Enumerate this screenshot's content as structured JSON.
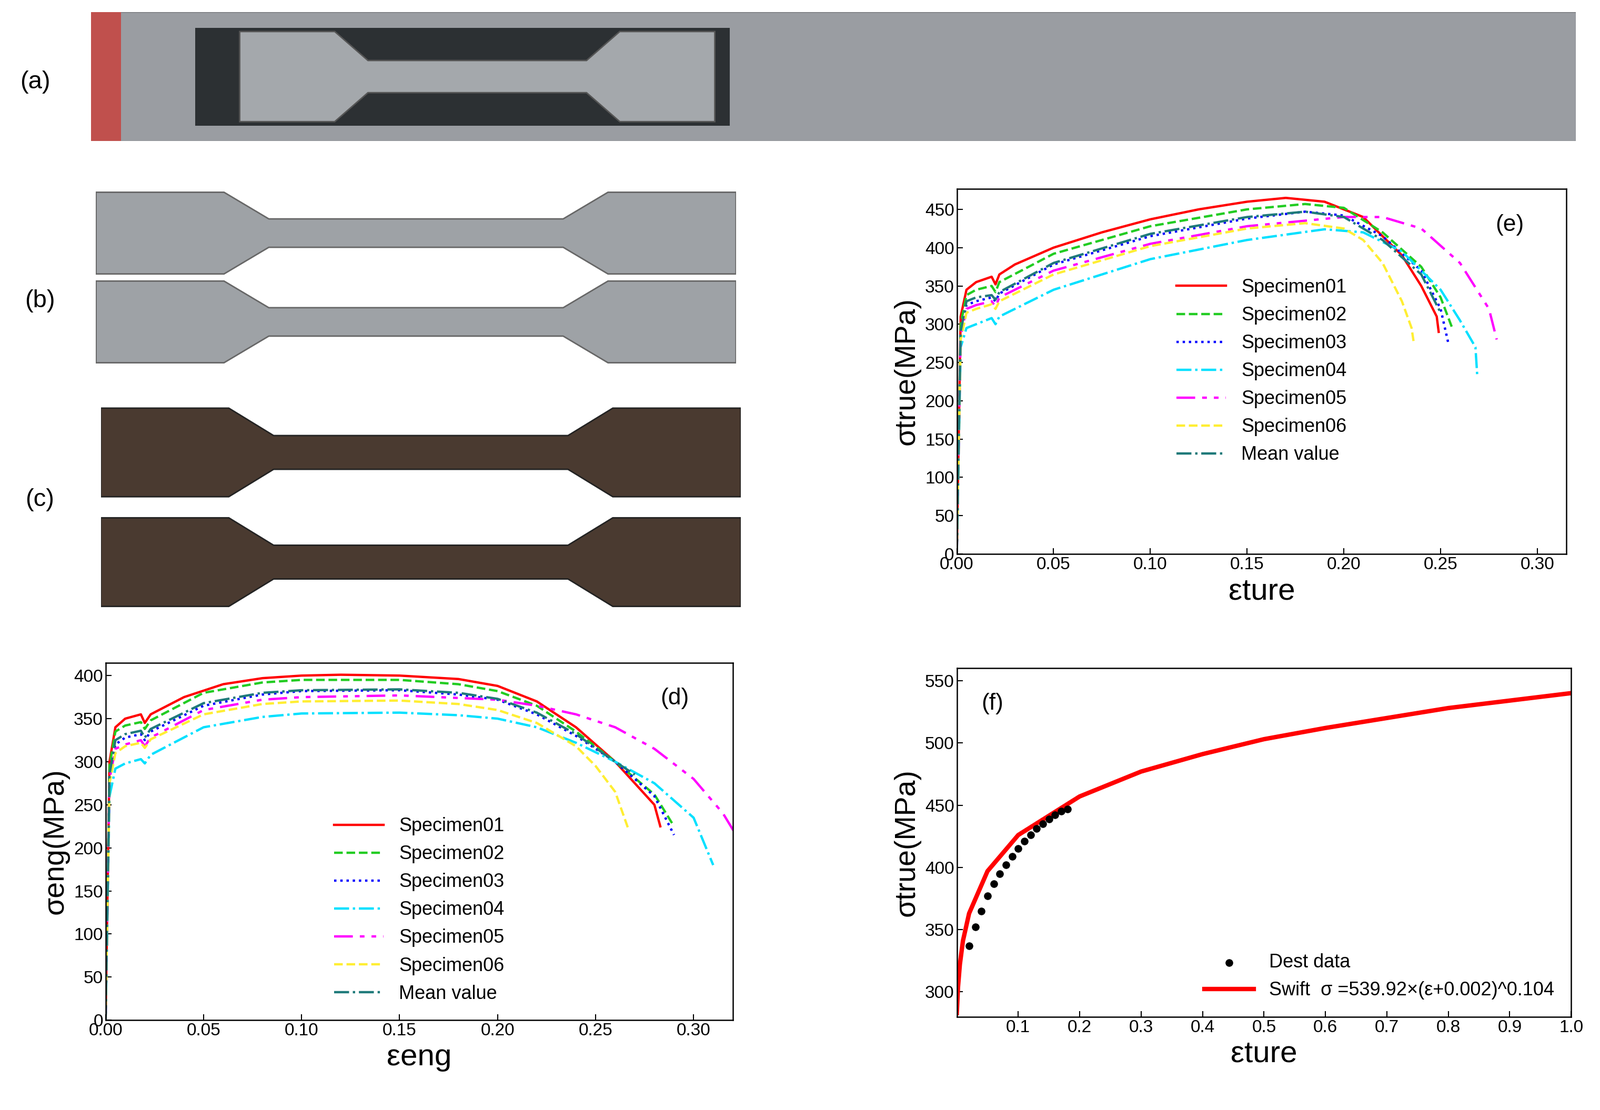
{
  "panels": [
    {
      "label": "(a)"
    },
    {
      "label": "(b)"
    },
    {
      "label": "(c)"
    }
  ],
  "chart_data": [
    {
      "type": "line",
      "title": "(d)",
      "x_label": "εeng",
      "y_label": "σeng(MPa)",
      "xlim": [
        0,
        0.32
      ],
      "ylim": [
        0,
        415
      ],
      "xticks": [
        {
          "value": 0,
          "label": "0.00"
        },
        {
          "value": 0.05,
          "label": "0.05"
        },
        {
          "value": 0.1,
          "label": "0.10"
        },
        {
          "value": 0.15,
          "label": "0.15"
        },
        {
          "value": 0.2,
          "label": "0.20"
        },
        {
          "value": 0.25,
          "label": "0.25"
        },
        {
          "value": 0.3,
          "label": "0.30"
        }
      ],
      "yticks": [
        0,
        50,
        100,
        150,
        200,
        250,
        300,
        350,
        400
      ],
      "legend": "lower center",
      "grid": false,
      "series": [
        {
          "name": "Specimen01",
          "color": "#ff0000",
          "line_style": "solid",
          "x": [
            0,
            0.002,
            0.005,
            0.01,
            0.018,
            0.02,
            0.023,
            0.04,
            0.06,
            0.08,
            0.1,
            0.12,
            0.15,
            0.18,
            0.2,
            0.22,
            0.24,
            0.26,
            0.28,
            0.283
          ],
          "values": [
            0,
            300,
            340,
            350,
            355,
            345,
            355,
            375,
            390,
            397,
            400,
            401,
            400,
            396,
            388,
            370,
            340,
            300,
            250,
            225
          ]
        },
        {
          "name": "Specimen02",
          "color": "#22cc22",
          "line_style": "dashed",
          "x": [
            0,
            0.002,
            0.005,
            0.01,
            0.018,
            0.02,
            0.023,
            0.05,
            0.08,
            0.1,
            0.15,
            0.18,
            0.2,
            0.22,
            0.24,
            0.26,
            0.28,
            0.29
          ],
          "values": [
            0,
            295,
            335,
            342,
            346,
            338,
            348,
            380,
            392,
            395,
            395,
            390,
            382,
            365,
            335,
            300,
            262,
            225
          ]
        },
        {
          "name": "Specimen03",
          "color": "#0000ff",
          "line_style": "dotted",
          "x": [
            0,
            0.002,
            0.005,
            0.01,
            0.018,
            0.02,
            0.023,
            0.05,
            0.08,
            0.1,
            0.15,
            0.18,
            0.2,
            0.22,
            0.24,
            0.26,
            0.28,
            0.29
          ],
          "values": [
            0,
            285,
            320,
            328,
            332,
            325,
            335,
            365,
            378,
            382,
            383,
            378,
            372,
            355,
            330,
            300,
            260,
            215
          ]
        },
        {
          "name": "Specimen04",
          "color": "#00e0ff",
          "line_style": "dashdot",
          "x": [
            0,
            0.002,
            0.005,
            0.01,
            0.018,
            0.02,
            0.023,
            0.05,
            0.08,
            0.1,
            0.15,
            0.18,
            0.2,
            0.22,
            0.24,
            0.26,
            0.28,
            0.3,
            0.31
          ],
          "values": [
            0,
            260,
            292,
            298,
            303,
            298,
            308,
            340,
            352,
            356,
            357,
            354,
            350,
            340,
            322,
            300,
            275,
            235,
            180
          ]
        },
        {
          "name": "Specimen05",
          "color": "#ff00ff",
          "line_style": "dashdotdot",
          "x": [
            0,
            0.002,
            0.005,
            0.01,
            0.018,
            0.02,
            0.023,
            0.05,
            0.08,
            0.1,
            0.15,
            0.2,
            0.22,
            0.24,
            0.26,
            0.28,
            0.3,
            0.315,
            0.323
          ],
          "values": [
            0,
            280,
            315,
            320,
            325,
            318,
            328,
            360,
            372,
            375,
            377,
            372,
            365,
            355,
            340,
            315,
            280,
            240,
            210
          ]
        },
        {
          "name": "Specimen06",
          "color": "#ffee33",
          "line_style": "dashed",
          "x": [
            0,
            0.002,
            0.005,
            0.01,
            0.018,
            0.02,
            0.023,
            0.05,
            0.08,
            0.1,
            0.15,
            0.18,
            0.2,
            0.22,
            0.24,
            0.25,
            0.26,
            0.267
          ],
          "values": [
            0,
            275,
            310,
            318,
            322,
            316,
            326,
            355,
            367,
            370,
            371,
            367,
            360,
            345,
            318,
            295,
            265,
            220
          ]
        },
        {
          "name": "Mean value",
          "color": "#1f7a7a",
          "line_style": "dashdot",
          "x": [
            0,
            0.002,
            0.005,
            0.01,
            0.018,
            0.02,
            0.023,
            0.05,
            0.08,
            0.1,
            0.15,
            0.18,
            0.2,
            0.22,
            0.24,
            0.26,
            0.27
          ],
          "values": [
            0,
            285,
            325,
            332,
            336,
            328,
            338,
            368,
            380,
            383,
            384,
            380,
            373,
            357,
            332,
            300,
            285
          ]
        }
      ]
    },
    {
      "type": "line",
      "title": "(e)",
      "x_label": "εture",
      "y_label": "σtrue(MPa)",
      "xlim": [
        0,
        0.315
      ],
      "ylim": [
        0,
        477
      ],
      "xticks": [
        {
          "value": 0,
          "label": "0.00"
        },
        {
          "value": 0.05,
          "label": "0.05"
        },
        {
          "value": 0.1,
          "label": "0.10"
        },
        {
          "value": 0.15,
          "label": "0.15"
        },
        {
          "value": 0.2,
          "label": "0.20"
        },
        {
          "value": 0.25,
          "label": "0.25"
        },
        {
          "value": 0.3,
          "label": "0.30"
        }
      ],
      "yticks": [
        0,
        50,
        100,
        150,
        200,
        250,
        300,
        350,
        400,
        450
      ],
      "legend": "center",
      "grid": false,
      "series": [
        {
          "name": "Specimen01",
          "color": "#ff0000",
          "line_style": "solid",
          "x": [
            0,
            0.002,
            0.005,
            0.01,
            0.018,
            0.02,
            0.022,
            0.03,
            0.05,
            0.075,
            0.1,
            0.125,
            0.15,
            0.17,
            0.19,
            0.21,
            0.23,
            0.24,
            0.248,
            0.249
          ],
          "values": [
            0,
            310,
            345,
            355,
            362,
            352,
            365,
            378,
            400,
            420,
            437,
            450,
            460,
            465,
            460,
            440,
            390,
            350,
            310,
            290
          ]
        },
        {
          "name": "Specimen02",
          "color": "#22cc22",
          "line_style": "dashed",
          "x": [
            0,
            0.002,
            0.005,
            0.01,
            0.018,
            0.02,
            0.022,
            0.05,
            0.1,
            0.15,
            0.18,
            0.2,
            0.22,
            0.24,
            0.25,
            0.256
          ],
          "values": [
            0,
            300,
            338,
            345,
            350,
            342,
            355,
            392,
            428,
            450,
            457,
            452,
            420,
            375,
            335,
            295
          ]
        },
        {
          "name": "Specimen03",
          "color": "#0000ff",
          "line_style": "dotted",
          "x": [
            0,
            0.002,
            0.005,
            0.01,
            0.018,
            0.02,
            0.022,
            0.05,
            0.1,
            0.15,
            0.18,
            0.2,
            0.22,
            0.24,
            0.25,
            0.254
          ],
          "values": [
            0,
            290,
            325,
            330,
            335,
            330,
            340,
            378,
            415,
            438,
            447,
            442,
            415,
            370,
            320,
            275
          ]
        },
        {
          "name": "Specimen04",
          "color": "#00e0ff",
          "line_style": "dashdot",
          "x": [
            0,
            0.002,
            0.005,
            0.01,
            0.018,
            0.02,
            0.022,
            0.05,
            0.1,
            0.15,
            0.19,
            0.21,
            0.23,
            0.25,
            0.26,
            0.268,
            0.269
          ],
          "values": [
            0,
            270,
            295,
            300,
            308,
            300,
            310,
            345,
            385,
            410,
            424,
            420,
            395,
            345,
            305,
            270,
            230
          ]
        },
        {
          "name": "Specimen05",
          "color": "#ff00ff",
          "line_style": "dashdotdot",
          "x": [
            0,
            0.002,
            0.005,
            0.01,
            0.018,
            0.02,
            0.022,
            0.05,
            0.1,
            0.15,
            0.2,
            0.22,
            0.24,
            0.26,
            0.275,
            0.279
          ],
          "values": [
            0,
            285,
            320,
            325,
            330,
            323,
            335,
            370,
            405,
            428,
            440,
            440,
            425,
            380,
            320,
            280
          ]
        },
        {
          "name": "Specimen06",
          "color": "#ffee33",
          "line_style": "dashed",
          "x": [
            0,
            0.002,
            0.005,
            0.01,
            0.018,
            0.02,
            0.022,
            0.05,
            0.1,
            0.15,
            0.18,
            0.2,
            0.21,
            0.22,
            0.23,
            0.235,
            0.236
          ],
          "values": [
            0,
            280,
            315,
            320,
            326,
            320,
            330,
            365,
            402,
            425,
            432,
            425,
            410,
            380,
            330,
            295,
            278
          ]
        },
        {
          "name": "Mean value",
          "color": "#1f7a7a",
          "line_style": "dashdot",
          "x": [
            0,
            0.002,
            0.005,
            0.01,
            0.018,
            0.02,
            0.022,
            0.05,
            0.1,
            0.15,
            0.18,
            0.2,
            0.22,
            0.24,
            0.25
          ],
          "values": [
            0,
            290,
            330,
            335,
            338,
            332,
            342,
            380,
            418,
            440,
            447,
            440,
            410,
            365,
            315
          ]
        }
      ]
    },
    {
      "type": "line",
      "title": "(f)",
      "x_label": "εture",
      "y_label": "σtrue(MPa)",
      "xlim": [
        0.0,
        1.0
      ],
      "ylim": [
        280,
        560
      ],
      "xticks": [
        0.1,
        0.2,
        0.3,
        0.4,
        0.5,
        0.6,
        0.7,
        0.8,
        0.9,
        1.0
      ],
      "yticks": [
        300,
        350,
        400,
        450,
        500,
        550
      ],
      "legend": "lower right",
      "grid": false,
      "series": [
        {
          "name": "Dest data",
          "type": "scatter",
          "color": "#000000",
          "marker": "o",
          "x": [
            0.02,
            0.03,
            0.04,
            0.05,
            0.06,
            0.07,
            0.08,
            0.09,
            0.1,
            0.11,
            0.12,
            0.13,
            0.14,
            0.15,
            0.16,
            0.17,
            0.18
          ],
          "values": [
            337,
            352,
            365,
            377,
            387,
            395,
            402,
            409,
            415,
            421,
            426,
            431,
            435,
            439,
            442,
            445,
            447
          ]
        },
        {
          "name": "Swift  σ =539.92×(ε+0.002)^0.104",
          "type": "line",
          "color": "#ff0000",
          "line_style": "solid",
          "x": [
            0.0,
            0.002,
            0.005,
            0.01,
            0.02,
            0.05,
            0.1,
            0.2,
            0.3,
            0.4,
            0.5,
            0.6,
            0.7,
            0.8,
            0.9,
            1.0
          ],
          "values": [
            283,
            304,
            322,
            341,
            363,
            397,
            426,
            457,
            477,
            491,
            503,
            512,
            520,
            528,
            534,
            540
          ]
        }
      ]
    }
  ]
}
